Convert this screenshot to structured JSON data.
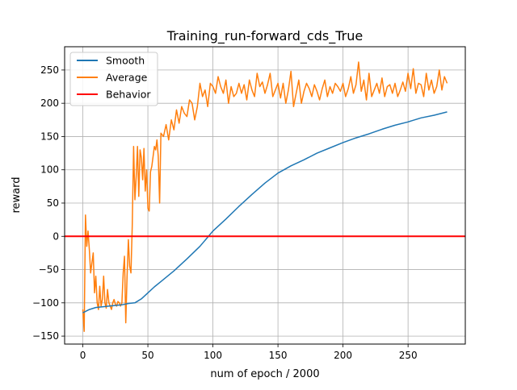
{
  "chart_data": {
    "type": "line",
    "title": "Training_run-forward_cds_True",
    "xlabel": "num of epoch / 2000",
    "ylabel": "reward",
    "xlim": [
      -14,
      294
    ],
    "ylim": [
      -162,
      285
    ],
    "xticks": [
      0,
      50,
      100,
      150,
      200,
      250
    ],
    "yticks": [
      -150,
      -100,
      -50,
      0,
      50,
      100,
      150,
      200,
      250
    ],
    "grid": true,
    "legend_position": "top-left",
    "series": [
      {
        "name": "Smooth",
        "color": "#1f77b4",
        "x": [
          0,
          5,
          10,
          20,
          30,
          35,
          40,
          45,
          50,
          55,
          60,
          70,
          80,
          90,
          100,
          110,
          120,
          130,
          140,
          150,
          160,
          170,
          180,
          190,
          200,
          210,
          220,
          230,
          240,
          250,
          260,
          270,
          280
        ],
        "y": [
          -115,
          -110,
          -107,
          -105,
          -103,
          -101,
          -100,
          -94,
          -85,
          -76,
          -68,
          -52,
          -34,
          -15,
          8,
          26,
          45,
          63,
          80,
          95,
          106,
          115,
          125,
          133,
          141,
          148,
          154,
          161,
          167,
          172,
          178,
          182,
          187
        ]
      },
      {
        "name": "Average",
        "color": "#ff7f0e",
        "x": [
          0,
          1,
          2,
          3,
          4,
          5,
          6,
          7,
          8,
          9,
          10,
          11,
          12,
          13,
          14,
          15,
          16,
          17,
          18,
          19,
          20,
          21,
          22,
          23,
          24,
          25,
          26,
          27,
          28,
          29,
          30,
          31,
          32,
          33,
          34,
          35,
          36,
          37,
          38,
          39,
          40,
          41,
          42,
          43,
          44,
          45,
          46,
          47,
          48,
          49,
          50,
          51,
          52,
          53,
          54,
          55,
          56,
          57,
          58,
          59,
          60,
          62,
          64,
          66,
          68,
          70,
          72,
          74,
          76,
          78,
          80,
          82,
          84,
          86,
          88,
          90,
          92,
          94,
          96,
          98,
          100,
          102,
          104,
          106,
          108,
          110,
          112,
          114,
          116,
          118,
          120,
          122,
          124,
          126,
          128,
          130,
          132,
          134,
          136,
          138,
          140,
          142,
          144,
          146,
          148,
          150,
          152,
          154,
          156,
          158,
          160,
          162,
          164,
          166,
          168,
          170,
          172,
          174,
          176,
          178,
          180,
          182,
          184,
          186,
          188,
          190,
          192,
          194,
          196,
          198,
          200,
          202,
          204,
          206,
          208,
          210,
          212,
          214,
          216,
          218,
          220,
          222,
          224,
          226,
          228,
          230,
          232,
          234,
          236,
          238,
          240,
          242,
          244,
          246,
          248,
          250,
          252,
          254,
          256,
          258,
          260,
          262,
          264,
          266,
          268,
          270,
          272,
          274,
          276,
          278,
          280
        ],
        "y": [
          -110,
          -143,
          32,
          -15,
          8,
          -20,
          -55,
          -40,
          -25,
          -85,
          -60,
          -100,
          -110,
          -75,
          -105,
          -95,
          -60,
          -100,
          -108,
          -80,
          -100,
          -105,
          -110,
          -100,
          -95,
          -102,
          -105,
          -98,
          -100,
          -105,
          -100,
          -55,
          -30,
          -130,
          -60,
          -5,
          -45,
          -55,
          15,
          135,
          55,
          90,
          135,
          60,
          130,
          118,
          85,
          132,
          68,
          100,
          42,
          38,
          97,
          105,
          120,
          135,
          130,
          145,
          120,
          50,
          155,
          150,
          168,
          145,
          175,
          160,
          190,
          170,
          195,
          185,
          180,
          205,
          200,
          175,
          195,
          230,
          210,
          220,
          195,
          230,
          225,
          215,
          240,
          225,
          215,
          235,
          200,
          225,
          210,
          215,
          230,
          215,
          228,
          205,
          235,
          220,
          210,
          245,
          225,
          232,
          215,
          228,
          245,
          210,
          220,
          230,
          208,
          230,
          200,
          220,
          248,
          195,
          215,
          235,
          200,
          218,
          230,
          222,
          210,
          228,
          218,
          205,
          222,
          235,
          210,
          225,
          215,
          230,
          225,
          218,
          230,
          210,
          222,
          240,
          215,
          228,
          262,
          218,
          235,
          205,
          245,
          210,
          220,
          230,
          215,
          238,
          210,
          225,
          228,
          215,
          230,
          210,
          220,
          232,
          218,
          245,
          222,
          252,
          215,
          230,
          228,
          210,
          245,
          220,
          235,
          215,
          225,
          250,
          220,
          240,
          230
        ],
        "note_omit": false
      },
      {
        "name": "Behavior",
        "color": "#ff0000",
        "type": "hline",
        "y": 0
      }
    ]
  }
}
